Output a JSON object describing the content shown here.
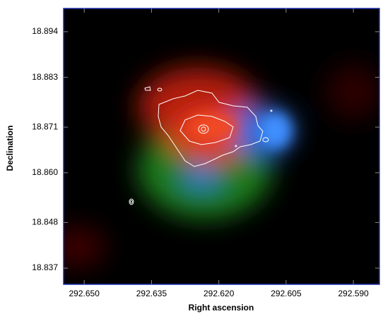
{
  "chart_data": {
    "type": "image",
    "xlabel": "Right ascension",
    "ylabel": "Declination",
    "xlim": [
      292.6546,
      292.5842
    ],
    "ylim": [
      18.8331,
      18.8996
    ],
    "xticks": [
      {
        "value": 292.65,
        "label": "292.650"
      },
      {
        "value": 292.635,
        "label": "292.635"
      },
      {
        "value": 292.62,
        "label": "292.620"
      },
      {
        "value": 292.605,
        "label": "292.605"
      },
      {
        "value": 292.59,
        "label": "292.590"
      }
    ],
    "yticks": [
      18.894,
      18.883,
      18.871,
      {
        "value": 18.86,
        "label": "18.860"
      },
      18.848,
      18.837
    ],
    "frame_color": "#1a2fb0"
  }
}
